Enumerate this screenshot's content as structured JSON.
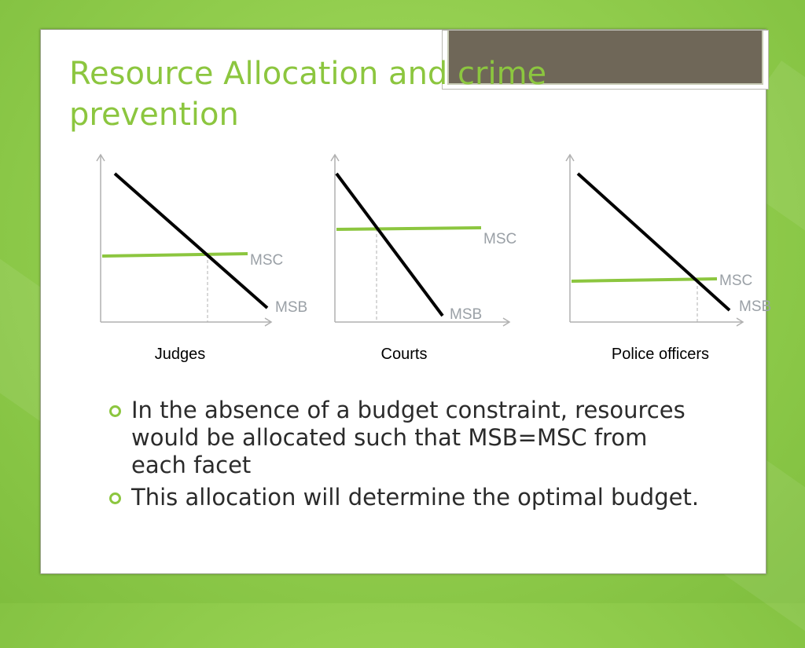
{
  "slide": {
    "title": "Resource Allocation and crime\nprevention",
    "colors": {
      "background": "#8fcc4e",
      "title": "#8cc63f",
      "msc_line": "#8cc63f",
      "msb_line": "#000000",
      "curve_label": "#9aa0a6",
      "title_plate": "#6f6758"
    }
  },
  "diagrams": [
    {
      "caption": "Judges",
      "msc_label": "MSC",
      "msb_label": "MSB"
    },
    {
      "caption": "Courts",
      "msc_label": "MSC",
      "msb_label": "MSB"
    },
    {
      "caption": "Police officers",
      "msc_label": "MSC",
      "msb_label": "MSB"
    }
  ],
  "bullets": [
    {
      "icon": "hollow-circle-bullet-icon",
      "text": "In the absence of a budget constraint, resources would be allocated such that MSB=MSC from each facet"
    },
    {
      "icon": "hollow-circle-bullet-icon",
      "text": "This allocation will determine the optimal budget."
    }
  ]
}
